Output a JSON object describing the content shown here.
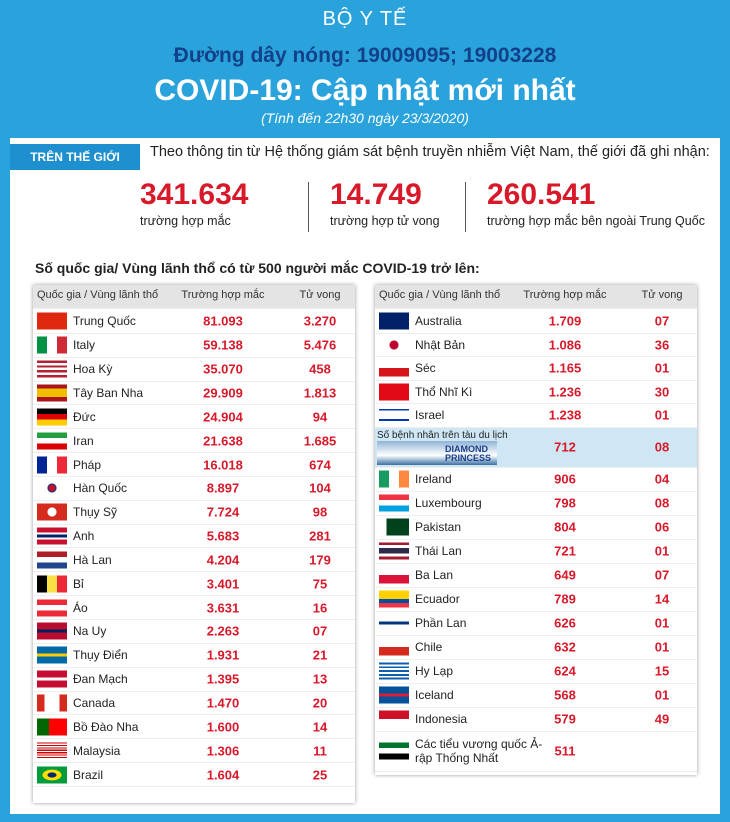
{
  "header": {
    "org": "BỘ Y TẾ",
    "hotline": "Đường dây nóng: 19009095; 19003228",
    "title": "COVID-19: Cập nhật mới nhất",
    "subtitle": "(Tính đến 22h30 ngày 23/3/2020)"
  },
  "world": {
    "tag": "TRÊN THẾ GIỚI",
    "intro": "Theo thông tin từ Hệ thống giám sát bệnh truyền nhiễm Việt Nam, thế giới đã ghi nhận:",
    "stats": [
      {
        "value": "341.634",
        "label": "trường hợp mắc"
      },
      {
        "value": "14.749",
        "label": "trường hợp tử vong"
      },
      {
        "value": "260.541",
        "label": "trường hợp  mắc bên ngoài Trung Quốc"
      }
    ]
  },
  "section_title": "Số quốc gia/ Vùng lãnh thổ có từ 500 người  mắc COVID-19 trở lên:",
  "left_table": {
    "columns": [
      "Quốc gia / Vùng lãnh thổ",
      "Trường hợp mắc",
      "Tử vong"
    ],
    "rows": [
      [
        "Trung Quốc",
        "81.093",
        "3.270"
      ],
      [
        "Italy",
        "59.138",
        "5.476"
      ],
      [
        "Hoa Kỳ",
        "35.070",
        "458"
      ],
      [
        "Tây Ban Nha",
        "29.909",
        "1.813"
      ],
      [
        "Đức",
        "24.904",
        "94"
      ],
      [
        "Iran",
        "21.638",
        "1.685"
      ],
      [
        "Pháp",
        "16.018",
        "674"
      ],
      [
        "Hàn Quốc",
        "8.897",
        "104"
      ],
      [
        "Thụy Sỹ",
        "7.724",
        "98"
      ],
      [
        "Anh",
        "5.683",
        "281"
      ],
      [
        "Hà Lan",
        "4.204",
        "179"
      ],
      [
        "Bỉ",
        "3.401",
        "75"
      ],
      [
        "Áo",
        "3.631",
        "16"
      ],
      [
        "Na Uy",
        "2.263",
        "07"
      ],
      [
        "Thụy Điển",
        "1.931",
        "21"
      ],
      [
        "Đan Mạch",
        "1.395",
        "13"
      ],
      [
        "Canada",
        "1.470",
        "20"
      ],
      [
        "Bồ Đào Nha",
        "1.600",
        "14"
      ],
      [
        "Malaysia",
        "1.306",
        "11"
      ],
      [
        "Brazil",
        "1.604",
        "25"
      ]
    ]
  },
  "right_table": {
    "columns": [
      "Quốc gia / Vùng lãnh thổ",
      "Trường hợp mắc",
      "Tử vong"
    ],
    "rows": [
      [
        "Australia",
        "1.709",
        "07"
      ],
      [
        "Nhật Bản",
        "1.086",
        "36"
      ],
      [
        "Séc",
        "1.165",
        "01"
      ],
      [
        "Thổ Nhĩ Kì",
        "1.236",
        "30"
      ],
      [
        "Israel",
        "1.238",
        "01"
      ],
      [
        "Số bệnh nhân trên tàu du lịch",
        "712",
        "08"
      ],
      [
        "Ireland",
        "906",
        "04"
      ],
      [
        "Luxembourg",
        "798",
        "08"
      ],
      [
        "Pakistan",
        "804",
        "06"
      ],
      [
        "Thái Lan",
        "721",
        "01"
      ],
      [
        "Ba Lan",
        "649",
        "07"
      ],
      [
        "Ecuador",
        "789",
        "14"
      ],
      [
        "Phần Lan",
        "626",
        "01"
      ],
      [
        "Chile",
        "632",
        "01"
      ],
      [
        "Hy Lạp",
        "624",
        "15"
      ],
      [
        "Iceland",
        "568",
        "01"
      ],
      [
        "Indonesia",
        "579",
        "49"
      ],
      [
        "Các tiểu vương quốc Ả-rập Thống Nhất",
        "511"
      ]
    ],
    "cruise_ship_label": "DIAMOND PRINCESS"
  }
}
